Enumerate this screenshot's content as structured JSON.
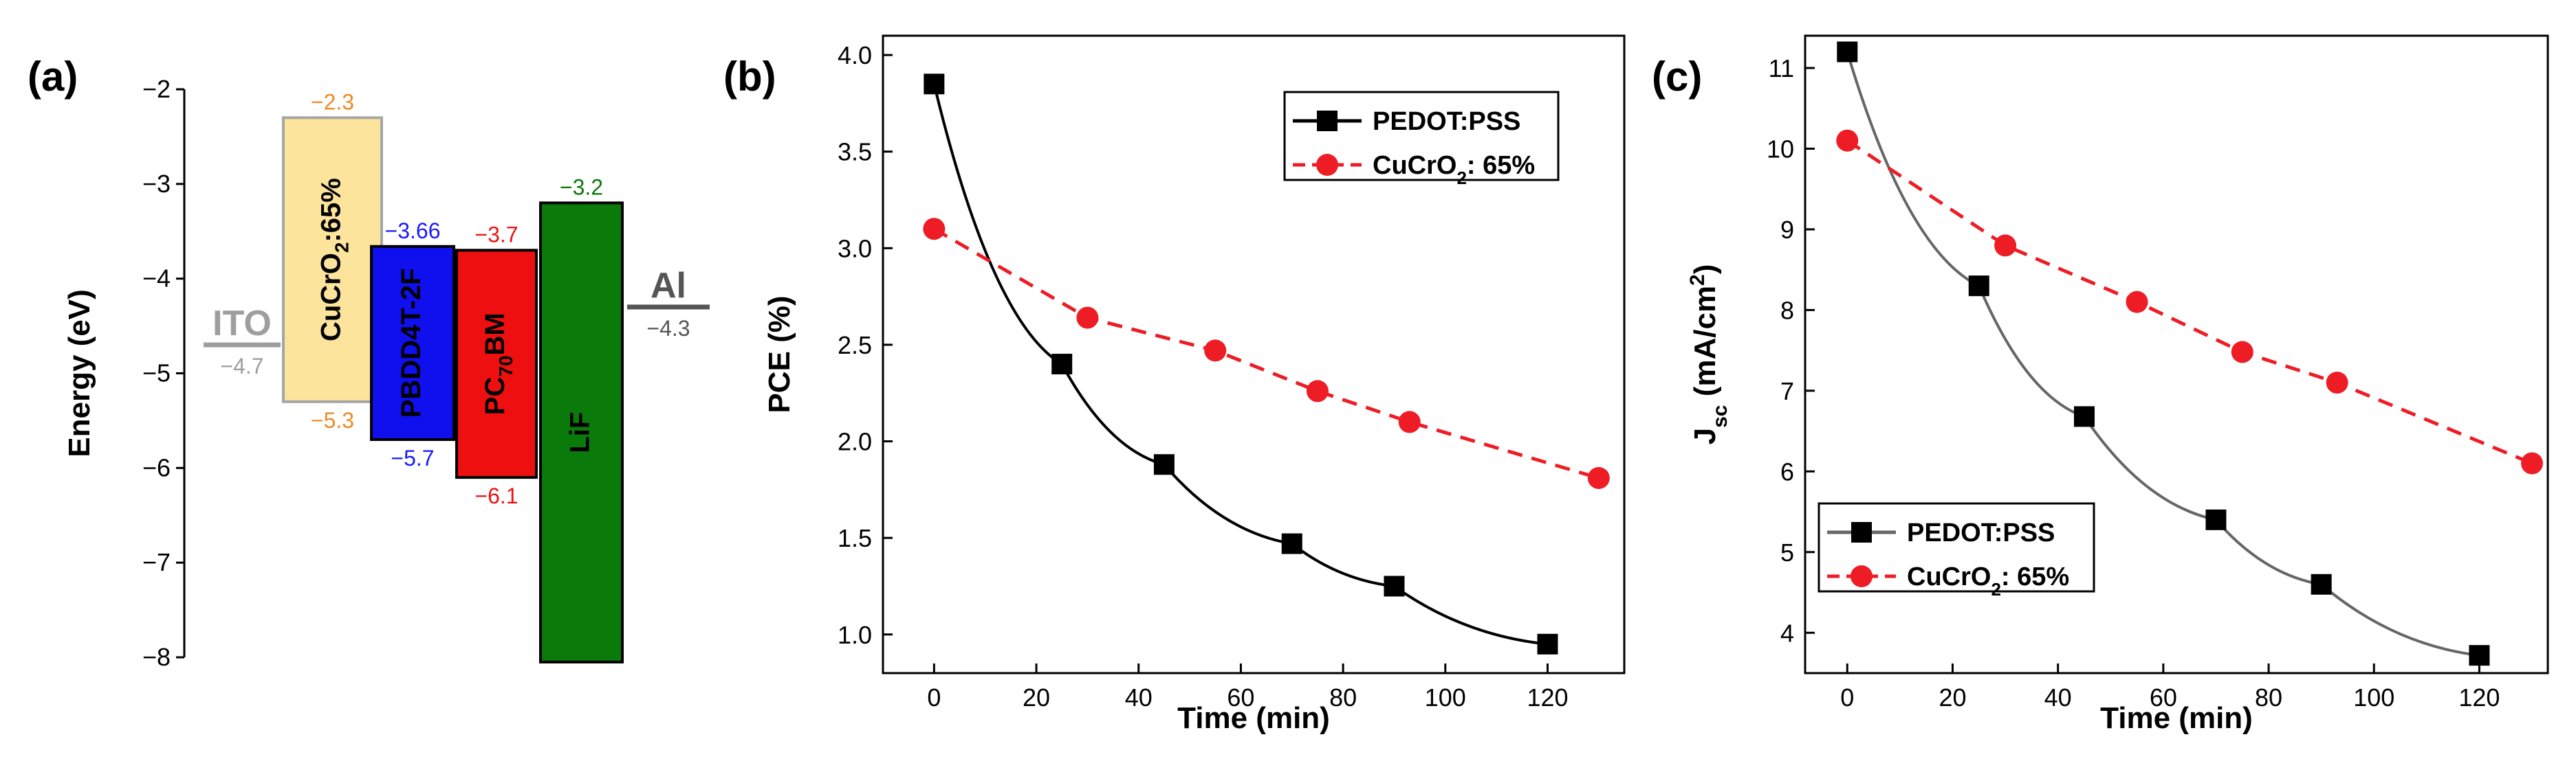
{
  "chart_data": [
    {
      "panel": "(a)",
      "type": "energy-level-diagram",
      "ylabel": "Energy (eV)",
      "ylim": [
        -8,
        -2
      ],
      "yticks": [
        "−2",
        "−3",
        "−4",
        "−5",
        "−6",
        "−7",
        "−8"
      ],
      "electrodes": [
        {
          "name": "ITO",
          "level": -4.7,
          "level_label": "−4.7",
          "color": "#9e9e9e"
        },
        {
          "name": "Al",
          "level": -4.3,
          "level_label": "−4.3",
          "color": "#555555"
        }
      ],
      "blocks": [
        {
          "name": "CuCrO2:65%",
          "label_main": "CuCrO",
          "label_sub": "2",
          "label_tail": ":65%",
          "top": -2.3,
          "bottom": -5.3,
          "top_label": "−2.3",
          "bottom_label": "−5.3",
          "fill": "#fde49c",
          "stroke": "#a6a6a6",
          "label_color": "#f08a24"
        },
        {
          "name": "PBDD4T-2F",
          "label_main": "PBDD4T-2F",
          "label_sub": "",
          "label_tail": "",
          "top": -3.66,
          "bottom": -5.7,
          "top_label": "−3.66",
          "bottom_label": "−5.7",
          "fill": "#1010ee",
          "stroke": "#000000",
          "label_color": "#1a1aff"
        },
        {
          "name": "PC70BM",
          "label_main": "PC",
          "label_sub": "70",
          "label_tail": "BM",
          "top": -3.7,
          "bottom": -6.1,
          "top_label": "−3.7",
          "bottom_label": "−6.1",
          "fill": "#ee1010",
          "stroke": "#000000",
          "label_color": "#ee1111"
        },
        {
          "name": "LiF",
          "label_main": "LiF",
          "label_sub": "",
          "label_tail": "",
          "top": -3.2,
          "bottom": -8.05,
          "top_label": "−3.2",
          "bottom_label": "",
          "fill": "#0a7a0a",
          "stroke": "#000000",
          "label_color": "#0a7a0a"
        }
      ]
    },
    {
      "panel": "(b)",
      "type": "line",
      "xlabel": "Time (min)",
      "ylabel": "PCE (%)",
      "xlim": [
        -10,
        135
      ],
      "ylim": [
        0.8,
        4.1
      ],
      "xticks": [
        0,
        20,
        40,
        60,
        80,
        100,
        120
      ],
      "yticks": [
        1.0,
        1.5,
        2.0,
        2.5,
        3.0,
        3.5,
        4.0
      ],
      "ytick_labels": [
        "1.0",
        "1.5",
        "2.0",
        "2.5",
        "3.0",
        "3.5",
        "4.0"
      ],
      "legend_position": "top-right",
      "series": [
        {
          "name": "PEDOT:PSS",
          "marker": "square",
          "color": "#000000",
          "dashed": false,
          "x": [
            0,
            25,
            45,
            70,
            90,
            120
          ],
          "y": [
            3.85,
            2.4,
            1.88,
            1.47,
            1.25,
            0.95
          ]
        },
        {
          "name": "CuCrO2: 65%",
          "label_main": "CuCrO",
          "label_sub": "2",
          "label_tail": ": 65%",
          "marker": "circle",
          "color": "#ee1c25",
          "dashed": true,
          "x": [
            0,
            30,
            55,
            75,
            93,
            130
          ],
          "y": [
            3.1,
            2.64,
            2.47,
            2.26,
            2.1,
            1.81
          ]
        }
      ]
    },
    {
      "panel": "(c)",
      "type": "line",
      "xlabel": "Time (min)",
      "ylabel": "Jsc (mA/cm2)",
      "ylabel_parts": {
        "main": "J",
        "sub": "sc",
        "mid": " (mA/cm",
        "sup": "2",
        "end": ")"
      },
      "xlim": [
        -8,
        133
      ],
      "ylim": [
        3.5,
        11.4
      ],
      "xticks": [
        0,
        20,
        40,
        60,
        80,
        100,
        120
      ],
      "yticks": [
        4,
        5,
        6,
        7,
        8,
        9,
        10,
        11
      ],
      "ytick_labels": [
        "4",
        "5",
        "6",
        "7",
        "8",
        "9",
        "10",
        "11"
      ],
      "legend_position": "bottom-left",
      "series": [
        {
          "name": "PEDOT:PSS",
          "marker": "square",
          "color": "#000000",
          "line_color": "#666666",
          "dashed": false,
          "x": [
            0,
            25,
            45,
            70,
            90,
            120
          ],
          "y": [
            11.2,
            8.3,
            6.68,
            5.4,
            4.6,
            3.72
          ]
        },
        {
          "name": "CuCrO2: 65%",
          "label_main": "CuCrO",
          "label_sub": "2",
          "label_tail": ": 65%",
          "marker": "circle",
          "color": "#ee1c25",
          "dashed": true,
          "x": [
            0,
            30,
            55,
            75,
            93,
            130
          ],
          "y": [
            10.1,
            8.8,
            8.1,
            7.48,
            7.1,
            6.1
          ]
        }
      ]
    }
  ]
}
